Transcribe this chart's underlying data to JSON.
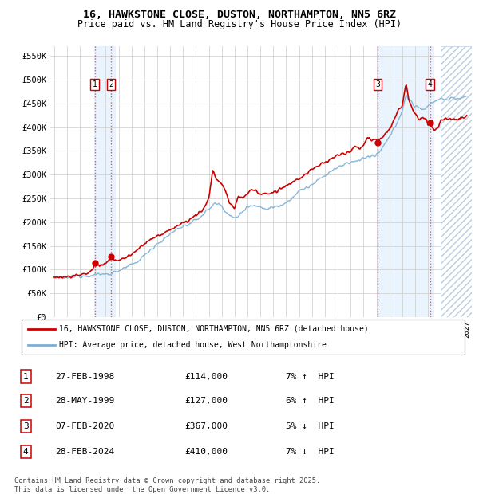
{
  "title_line1": "16, HAWKSTONE CLOSE, DUSTON, NORTHAMPTON, NN5 6RZ",
  "title_line2": "Price paid vs. HM Land Registry's House Price Index (HPI)",
  "y_ticks": [
    0,
    50000,
    100000,
    150000,
    200000,
    250000,
    300000,
    350000,
    400000,
    450000,
    500000,
    550000
  ],
  "y_tick_labels": [
    "£0",
    "£50K",
    "£100K",
    "£150K",
    "£200K",
    "£250K",
    "£300K",
    "£350K",
    "£400K",
    "£450K",
    "£500K",
    "£550K"
  ],
  "sale_color": "#cc0000",
  "hpi_color": "#7aafd4",
  "vline_color": "#dd4444",
  "vline_bg_color": "#ddeeff",
  "transactions": [
    {
      "num": 1,
      "date": "27-FEB-1998",
      "year": 1998.15,
      "price": 114000,
      "pct": "7%",
      "dir": "↑"
    },
    {
      "num": 2,
      "date": "28-MAY-1999",
      "year": 1999.41,
      "price": 127000,
      "pct": "6%",
      "dir": "↑"
    },
    {
      "num": 3,
      "date": "07-FEB-2020",
      "year": 2020.1,
      "price": 367000,
      "pct": "5%",
      "dir": "↓"
    },
    {
      "num": 4,
      "date": "28-FEB-2024",
      "year": 2024.15,
      "price": 410000,
      "pct": "7%",
      "dir": "↓"
    }
  ],
  "legend_line1": "16, HAWKSTONE CLOSE, DUSTON, NORTHAMPTON, NN5 6RZ (detached house)",
  "legend_line2": "HPI: Average price, detached house, West Northamptonshire",
  "footnote": "Contains HM Land Registry data © Crown copyright and database right 2025.\nThis data is licensed under the Open Government Licence v3.0.",
  "bg_color": "#ffffff",
  "grid_color": "#cccccc"
}
